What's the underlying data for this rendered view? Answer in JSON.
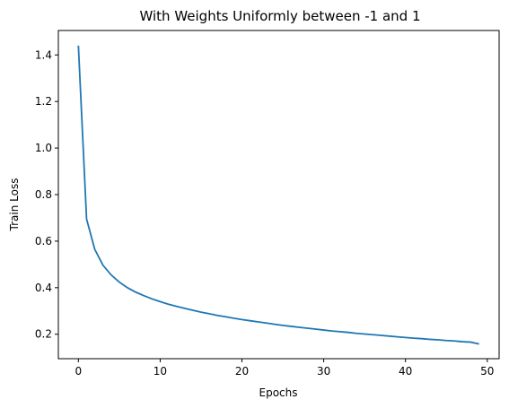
{
  "chart_data": {
    "type": "line",
    "title": "With Weights Uniformly between -1 and 1",
    "xlabel": "Epochs",
    "ylabel": "Train Loss",
    "xlim": [
      -2.45,
      51.45
    ],
    "ylim": [
      0.095,
      1.505
    ],
    "xticks": [
      0,
      10,
      20,
      30,
      40,
      50
    ],
    "xtick_labels": [
      "0",
      "10",
      "20",
      "30",
      "40",
      "50"
    ],
    "yticks": [
      0.2,
      0.4,
      0.6,
      0.8,
      1.0,
      1.2,
      1.4
    ],
    "ytick_labels": [
      "0.2",
      "0.4",
      "0.6",
      "0.8",
      "1.0",
      "1.2",
      "1.4"
    ],
    "grid": false,
    "legend": "none",
    "series": [
      {
        "color": "#1f77b4",
        "x": [
          0,
          1,
          2,
          3,
          4,
          5,
          6,
          7,
          8,
          9,
          10,
          11,
          12,
          13,
          14,
          15,
          16,
          17,
          18,
          19,
          20,
          21,
          22,
          23,
          24,
          25,
          26,
          27,
          28,
          29,
          30,
          31,
          32,
          33,
          34,
          35,
          36,
          37,
          38,
          39,
          40,
          41,
          42,
          43,
          44,
          45,
          46,
          47,
          48,
          49
        ],
        "values": [
          1.44,
          0.695,
          0.565,
          0.497,
          0.455,
          0.424,
          0.4,
          0.381,
          0.366,
          0.352,
          0.34,
          0.329,
          0.32,
          0.311,
          0.303,
          0.295,
          0.288,
          0.281,
          0.275,
          0.269,
          0.263,
          0.258,
          0.253,
          0.248,
          0.243,
          0.238,
          0.234,
          0.23,
          0.226,
          0.222,
          0.218,
          0.214,
          0.211,
          0.208,
          0.204,
          0.201,
          0.198,
          0.195,
          0.192,
          0.189,
          0.186,
          0.183,
          0.181,
          0.178,
          0.176,
          0.173,
          0.171,
          0.168,
          0.166,
          0.158
        ]
      }
    ]
  }
}
